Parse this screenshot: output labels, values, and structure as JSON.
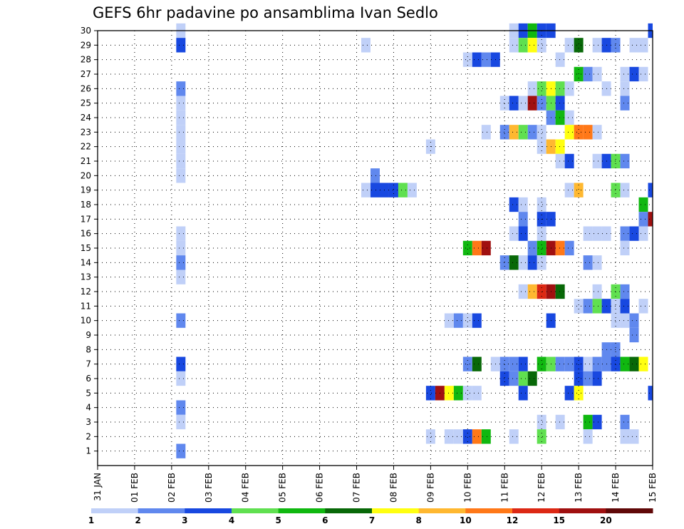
{
  "chart_data": {
    "type": "heatmap",
    "title": "GEFS 6hr padavine po ansamblima Ivan Sedlo",
    "xlabel": "",
    "ylabel": "",
    "x_ticks": [
      "31 JAN",
      "01 FEB",
      "02 FEB",
      "03 FEB",
      "04 FEB",
      "05 FEB",
      "06 FEB",
      "07 FEB",
      "08 FEB",
      "09 FEB",
      "10 FEB",
      "11 FEB",
      "12 FEB",
      "13 FEB",
      "14 FEB",
      "15 FEB"
    ],
    "y_ticks": [
      1,
      2,
      3,
      4,
      5,
      6,
      7,
      8,
      9,
      10,
      11,
      12,
      13,
      14,
      15,
      16,
      17,
      18,
      19,
      20,
      21,
      22,
      23,
      24,
      25,
      26,
      27,
      28,
      29,
      30
    ],
    "x_range_days": [
      0,
      15
    ],
    "y_range": [
      0,
      30
    ],
    "time_step_hours": 6,
    "grid": true,
    "colorbar": {
      "ticks": [
        "1",
        "2",
        "3",
        "4",
        "5",
        "6",
        "7",
        "8",
        "10",
        "12",
        "15",
        "20"
      ],
      "colors": [
        "#c0d0f8",
        "#6088ee",
        "#1848e0",
        "#60e050",
        "#10b810",
        "#086808",
        "#ffff10",
        "#ffb830",
        "#ff7818",
        "#dc2814",
        "#a01010",
        "#600808"
      ]
    },
    "cells": [
      [
        2.25,
        30,
        1
      ],
      [
        11.25,
        30,
        1
      ],
      [
        11.5,
        30,
        3
      ],
      [
        11.75,
        30,
        5
      ],
      [
        12.0,
        30,
        3
      ],
      [
        12.25,
        30,
        3
      ],
      [
        15.0,
        30,
        3
      ],
      [
        2.25,
        29,
        3
      ],
      [
        7.25,
        29,
        1
      ],
      [
        11.25,
        29,
        1
      ],
      [
        11.5,
        29,
        4
      ],
      [
        11.75,
        29,
        7
      ],
      [
        12.0,
        29,
        1
      ],
      [
        12.75,
        29,
        1
      ],
      [
        13.0,
        29,
        6
      ],
      [
        13.5,
        29,
        1
      ],
      [
        13.75,
        29,
        3
      ],
      [
        14.0,
        29,
        2
      ],
      [
        14.5,
        29,
        1
      ],
      [
        14.75,
        29,
        1
      ],
      [
        10.0,
        28,
        1
      ],
      [
        10.25,
        28,
        3
      ],
      [
        10.5,
        28,
        2
      ],
      [
        10.75,
        28,
        3
      ],
      [
        12.5,
        28,
        1
      ],
      [
        13.0,
        27,
        5
      ],
      [
        13.25,
        27,
        2
      ],
      [
        13.5,
        27,
        1
      ],
      [
        14.25,
        27,
        1
      ],
      [
        14.5,
        27,
        3
      ],
      [
        14.75,
        27,
        1
      ],
      [
        2.25,
        26,
        2
      ],
      [
        11.75,
        26,
        1
      ],
      [
        12.0,
        26,
        4
      ],
      [
        12.25,
        26,
        7
      ],
      [
        12.5,
        26,
        4
      ],
      [
        12.75,
        26,
        1
      ],
      [
        13.75,
        26,
        1
      ],
      [
        14.25,
        26,
        1
      ],
      [
        2.25,
        25,
        1
      ],
      [
        11.0,
        25,
        1
      ],
      [
        11.25,
        25,
        3
      ],
      [
        11.5,
        25,
        1
      ],
      [
        11.75,
        25,
        11
      ],
      [
        12.0,
        25,
        2
      ],
      [
        12.25,
        25,
        4
      ],
      [
        12.5,
        25,
        3
      ],
      [
        14.25,
        25,
        2
      ],
      [
        2.25,
        24,
        1
      ],
      [
        12.25,
        24,
        2
      ],
      [
        12.5,
        24,
        5
      ],
      [
        12.75,
        24,
        1
      ],
      [
        2.25,
        23,
        1
      ],
      [
        10.5,
        23,
        1
      ],
      [
        11.0,
        23,
        2
      ],
      [
        11.25,
        23,
        8
      ],
      [
        11.5,
        23,
        4
      ],
      [
        11.75,
        23,
        2
      ],
      [
        12.0,
        23,
        1
      ],
      [
        12.75,
        23,
        7
      ],
      [
        13.0,
        23,
        9
      ],
      [
        13.25,
        23,
        9
      ],
      [
        13.5,
        23,
        1
      ],
      [
        2.25,
        22,
        1
      ],
      [
        9.0,
        22,
        1
      ],
      [
        12.0,
        22,
        1
      ],
      [
        12.25,
        22,
        8
      ],
      [
        12.5,
        22,
        7
      ],
      [
        2.25,
        21,
        1
      ],
      [
        12.5,
        21,
        1
      ],
      [
        12.75,
        21,
        3
      ],
      [
        13.5,
        21,
        1
      ],
      [
        13.75,
        21,
        3
      ],
      [
        14.0,
        21,
        4
      ],
      [
        14.25,
        21,
        2
      ],
      [
        2.25,
        20,
        1
      ],
      [
        7.5,
        20,
        2
      ],
      [
        7.25,
        19,
        1
      ],
      [
        7.5,
        19,
        3
      ],
      [
        7.75,
        19,
        3
      ],
      [
        8.0,
        19,
        3
      ],
      [
        8.25,
        19,
        4
      ],
      [
        8.5,
        19,
        1
      ],
      [
        12.75,
        19,
        1
      ],
      [
        13.0,
        19,
        8
      ],
      [
        14.0,
        19,
        4
      ],
      [
        14.25,
        19,
        1
      ],
      [
        15.0,
        19,
        3
      ],
      [
        11.25,
        18,
        3
      ],
      [
        11.5,
        18,
        1
      ],
      [
        12.0,
        18,
        1
      ],
      [
        14.75,
        18,
        5
      ],
      [
        11.5,
        17,
        2
      ],
      [
        12.0,
        17,
        3
      ],
      [
        12.25,
        17,
        3
      ],
      [
        14.75,
        17,
        2
      ],
      [
        15.0,
        17,
        11
      ],
      [
        2.25,
        16,
        1
      ],
      [
        11.25,
        16,
        1
      ],
      [
        11.5,
        16,
        3
      ],
      [
        12.0,
        16,
        1
      ],
      [
        13.25,
        16,
        1
      ],
      [
        13.5,
        16,
        1
      ],
      [
        13.75,
        16,
        1
      ],
      [
        14.25,
        16,
        2
      ],
      [
        14.5,
        16,
        3
      ],
      [
        14.75,
        16,
        1
      ],
      [
        2.25,
        15,
        1
      ],
      [
        10.0,
        15,
        5
      ],
      [
        10.25,
        15,
        9
      ],
      [
        10.5,
        15,
        11
      ],
      [
        11.75,
        15,
        2
      ],
      [
        12.0,
        15,
        5
      ],
      [
        12.25,
        15,
        11
      ],
      [
        12.5,
        15,
        9
      ],
      [
        12.75,
        15,
        2
      ],
      [
        14.25,
        15,
        1
      ],
      [
        2.25,
        14,
        2
      ],
      [
        11.0,
        14,
        2
      ],
      [
        11.25,
        14,
        6
      ],
      [
        11.5,
        14,
        1
      ],
      [
        11.75,
        14,
        3
      ],
      [
        12.0,
        14,
        1
      ],
      [
        13.25,
        14,
        2
      ],
      [
        13.5,
        14,
        1
      ],
      [
        2.25,
        13,
        1
      ],
      [
        11.5,
        12,
        1
      ],
      [
        11.75,
        12,
        8
      ],
      [
        12.0,
        12,
        10
      ],
      [
        12.25,
        12,
        11
      ],
      [
        12.5,
        12,
        6
      ],
      [
        13.5,
        12,
        1
      ],
      [
        14.0,
        12,
        4
      ],
      [
        14.25,
        12,
        2
      ],
      [
        13.0,
        11,
        1
      ],
      [
        13.25,
        11,
        2
      ],
      [
        13.5,
        11,
        4
      ],
      [
        13.75,
        11,
        3
      ],
      [
        14.0,
        11,
        1
      ],
      [
        14.25,
        11,
        3
      ],
      [
        14.75,
        11,
        1
      ],
      [
        2.25,
        10,
        2
      ],
      [
        9.5,
        10,
        1
      ],
      [
        9.75,
        10,
        2
      ],
      [
        10.0,
        10,
        1
      ],
      [
        10.25,
        10,
        3
      ],
      [
        12.25,
        10,
        3
      ],
      [
        14.0,
        10,
        1
      ],
      [
        14.25,
        10,
        1
      ],
      [
        14.5,
        10,
        2
      ],
      [
        14.5,
        9,
        2
      ],
      [
        13.75,
        8,
        2
      ],
      [
        14.0,
        8,
        2
      ],
      [
        2.25,
        7,
        3
      ],
      [
        10.0,
        7,
        2
      ],
      [
        10.25,
        7,
        6
      ],
      [
        10.75,
        7,
        1
      ],
      [
        11.0,
        7,
        2
      ],
      [
        11.25,
        7,
        2
      ],
      [
        11.5,
        7,
        3
      ],
      [
        12.0,
        7,
        5
      ],
      [
        12.25,
        7,
        4
      ],
      [
        12.5,
        7,
        2
      ],
      [
        12.75,
        7,
        2
      ],
      [
        13.0,
        7,
        3
      ],
      [
        13.25,
        7,
        1
      ],
      [
        13.5,
        7,
        2
      ],
      [
        13.75,
        7,
        2
      ],
      [
        14.0,
        7,
        3
      ],
      [
        14.25,
        7,
        5
      ],
      [
        14.5,
        7,
        6
      ],
      [
        14.75,
        7,
        7
      ],
      [
        2.25,
        6,
        1
      ],
      [
        11.0,
        6,
        3
      ],
      [
        11.25,
        6,
        2
      ],
      [
        11.5,
        6,
        4
      ],
      [
        11.75,
        6,
        6
      ],
      [
        13.0,
        6,
        3
      ],
      [
        13.25,
        6,
        2
      ],
      [
        13.5,
        6,
        3
      ],
      [
        9.0,
        5,
        3
      ],
      [
        9.25,
        5,
        11
      ],
      [
        9.5,
        5,
        7
      ],
      [
        9.75,
        5,
        5
      ],
      [
        10.0,
        5,
        1
      ],
      [
        10.25,
        5,
        1
      ],
      [
        11.5,
        5,
        3
      ],
      [
        12.75,
        5,
        3
      ],
      [
        13.0,
        5,
        7
      ],
      [
        15.0,
        5,
        3
      ],
      [
        2.25,
        4,
        2
      ],
      [
        2.25,
        3,
        1
      ],
      [
        12.0,
        3,
        1
      ],
      [
        12.5,
        3,
        1
      ],
      [
        13.25,
        3,
        5
      ],
      [
        13.5,
        3,
        3
      ],
      [
        14.25,
        3,
        2
      ],
      [
        9.0,
        2,
        1
      ],
      [
        9.5,
        2,
        1
      ],
      [
        9.75,
        2,
        1
      ],
      [
        10.0,
        2,
        3
      ],
      [
        10.25,
        2,
        9
      ],
      [
        10.5,
        2,
        5
      ],
      [
        11.25,
        2,
        1
      ],
      [
        12.0,
        2,
        4
      ],
      [
        13.25,
        2,
        1
      ],
      [
        14.25,
        2,
        1
      ],
      [
        14.5,
        2,
        1
      ],
      [
        2.25,
        1,
        2
      ]
    ]
  }
}
